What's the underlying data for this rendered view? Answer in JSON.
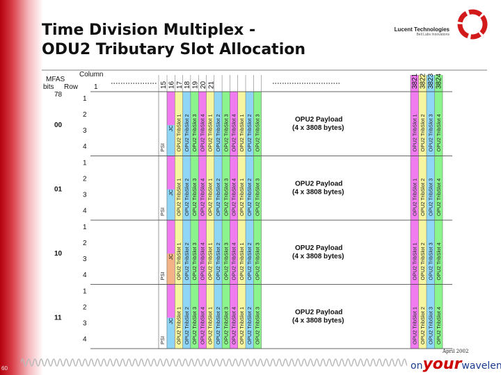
{
  "title": {
    "line1": "Time Division Multiplex -",
    "line2": "ODU2 Tributary Slot Allocation"
  },
  "logo": {
    "name": "Lucent Technologies",
    "tagline": "Bell Labs Innovations"
  },
  "header": {
    "mfas": "MFAS",
    "bits": "bits",
    "row": "Row",
    "column": "Column",
    "column_start": "1",
    "mfas_bits": "78"
  },
  "column_numbers": [
    "15",
    "16",
    "17",
    "18",
    "19",
    "20",
    "21"
  ],
  "column_numbers_end": [
    "3821",
    "3822",
    "3823",
    "3824"
  ],
  "rows": [
    "1",
    "2",
    "3",
    "4"
  ],
  "frames": [
    {
      "mfas": "00",
      "psi": "PSI",
      "oh": "JC"
    },
    {
      "mfas": "01",
      "psi": "PSI",
      "oh": "JC"
    },
    {
      "mfas": "10",
      "psi": "PSI",
      "oh": "JC"
    },
    {
      "mfas": "11",
      "psi": "PSI",
      "oh": "JC"
    }
  ],
  "slot_labels": [
    "OPU2 TribSlot 1",
    "OPU2 TribSlot 2",
    "OPU2 TribSlot 3",
    "OPU2 TribSlot 4"
  ],
  "payload": {
    "line1": "OPU2 Payload",
    "line2": "(4 x 3808 bytes)"
  },
  "slot_colors": [
    "#f07cf0",
    "#f6f6a0",
    "#8fd6f6",
    "#8cf48c"
  ],
  "footer": {
    "date": "April 2002",
    "page": "60",
    "brand_pre": "on",
    "brand_big": "your",
    "brand_post": "wavelength"
  }
}
